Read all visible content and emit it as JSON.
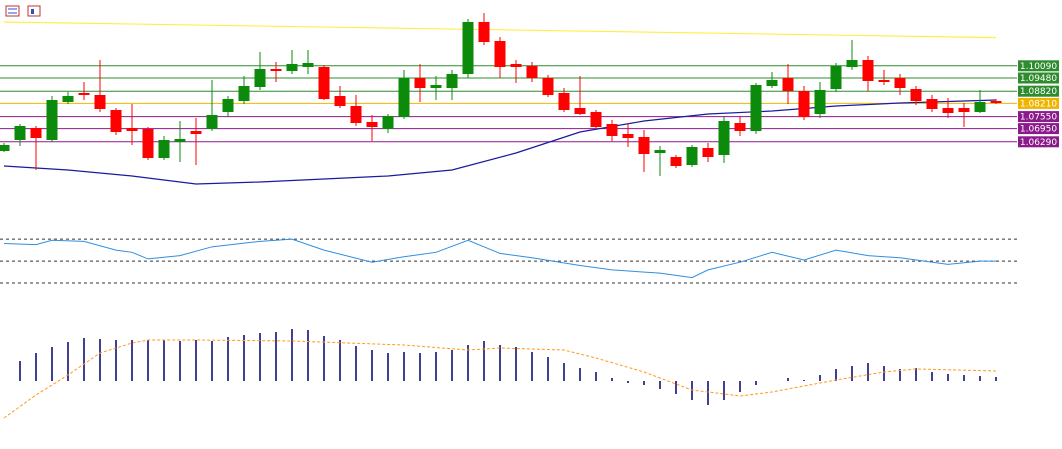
{
  "chart_data": [
    {
      "type": "candlestick",
      "ylim": [
        1.0338,
        1.1338
      ],
      "up_color": "#0b8a0b",
      "down_color": "#ff0000",
      "open": [
        1.0583,
        1.0638,
        1.0698,
        1.0638,
        1.0828,
        1.0873,
        1.0863,
        1.0788,
        1.0698,
        1.0693,
        1.0548,
        1.0628,
        1.0683,
        1.0693,
        1.0778,
        1.0833,
        1.0903,
        1.0993,
        1.0983,
        1.1003,
        1.1003,
        1.0858,
        1.0808,
        1.0728,
        1.0693,
        1.0753,
        1.0948,
        1.0898,
        1.0898,
        1.0968,
        1.1228,
        1.1133,
        1.1018,
        1.1008,
        1.0948,
        1.0873,
        1.0798,
        1.0778,
        1.0718,
        1.0668,
        1.0653,
        1.0573,
        1.0553,
        1.0513,
        1.0598,
        1.0563,
        1.0723,
        1.0683,
        1.0908,
        1.0948,
        1.0883,
        1.0768,
        1.0893,
        1.1003,
        1.1038,
        1.0938,
        1.0948,
        1.0893,
        1.0843,
        1.0798,
        1.0798,
        1.0778,
        1.0833
      ],
      "high": [
        1.0623,
        1.0718,
        1.0708,
        1.0858,
        1.0878,
        1.0928,
        1.1038,
        1.0798,
        1.0818,
        1.0703,
        1.0658,
        1.0733,
        1.0748,
        1.0938,
        1.0858,
        1.0958,
        1.1078,
        1.1028,
        1.1088,
        1.1088,
        1.1013,
        1.0908,
        1.0863,
        1.0763,
        1.0768,
        1.0988,
        1.1018,
        1.0958,
        1.0988,
        1.1243,
        1.1273,
        1.1153,
        1.1038,
        1.1028,
        1.0963,
        1.0898,
        1.0958,
        1.0788,
        1.0738,
        1.0723,
        1.0688,
        1.0608,
        1.0563,
        1.0613,
        1.0623,
        1.0753,
        1.0758,
        1.0923,
        1.0978,
        1.1018,
        1.0908,
        1.0928,
        1.1023,
        1.1138,
        1.1058,
        1.0988,
        1.0968,
        1.0908,
        1.0863,
        1.0848,
        1.0823,
        1.0888,
        1.0843
      ],
      "low": [
        1.0578,
        1.0608,
        1.0488,
        1.0628,
        1.0818,
        1.0838,
        1.0778,
        1.0663,
        1.0613,
        1.0538,
        1.0538,
        1.0528,
        1.0513,
        1.0683,
        1.0753,
        1.0818,
        1.0888,
        1.0928,
        1.0968,
        1.0968,
        1.0838,
        1.0798,
        1.0708,
        1.0633,
        1.0673,
        1.0743,
        1.0828,
        1.0838,
        1.0838,
        1.0948,
        1.1113,
        1.0948,
        1.0923,
        1.0928,
        1.0853,
        1.0778,
        1.0763,
        1.0698,
        1.0633,
        1.0603,
        1.0478,
        1.0458,
        1.0498,
        1.0503,
        1.0528,
        1.0523,
        1.0658,
        1.0668,
        1.0898,
        1.0818,
        1.0738,
        1.0748,
        1.0878,
        1.0988,
        1.0883,
        1.0913,
        1.0863,
        1.0813,
        1.0778,
        1.0748,
        1.0703,
        1.0773,
        1.0818
      ],
      "close": [
        1.0613,
        1.0708,
        1.0648,
        1.0838,
        1.0858,
        1.0863,
        1.0793,
        1.0678,
        1.0683,
        1.0548,
        1.0638,
        1.0643,
        1.0668,
        1.0763,
        1.0843,
        1.0908,
        1.0993,
        1.0983,
        1.1018,
        1.1023,
        1.0843,
        1.0808,
        1.0723,
        1.0703,
        1.0758,
        1.0948,
        1.0898,
        1.0913,
        1.0968,
        1.1228,
        1.1128,
        1.1003,
        1.1003,
        1.0948,
        1.0863,
        1.0788,
        1.0768,
        1.0703,
        1.0658,
        1.0648,
        1.0568,
        1.0588,
        1.0508,
        1.0603,
        1.0553,
        1.0733,
        1.0683,
        1.0913,
        1.0938,
        1.0883,
        1.0753,
        1.0888,
        1.1008,
        1.1038,
        1.0933,
        1.0928,
        1.0898,
        1.0833,
        1.0793,
        1.0773,
        1.0778,
        1.0828,
        1.0823
      ],
      "overlays": [
        {
          "color": "#ffee44",
          "x": [
            0,
            62
          ],
          "values": [
            1.1228,
            1.115
          ]
        },
        {
          "color": "#1a1aa0",
          "x": [
            0,
            4,
            8,
            12,
            16,
            20,
            24,
            28,
            32,
            36,
            40,
            44,
            48,
            52,
            56,
            60,
            62
          ],
          "values": [
            1.0508,
            1.0488,
            1.0458,
            1.0418,
            1.0428,
            1.0443,
            1.0458,
            1.0488,
            1.0573,
            1.0678,
            1.0733,
            1.0768,
            1.0783,
            1.0808,
            1.0823,
            1.0833,
            1.0838
          ]
        }
      ],
      "levels": [
        {
          "value": 1.1009,
          "label": "1.10090",
          "color": "#2e8b2e"
        },
        {
          "value": 1.0948,
          "label": "1.09480",
          "color": "#2e8b2e"
        },
        {
          "value": 1.0882,
          "label": "1.08820",
          "color": "#2e8b2e"
        },
        {
          "value": 1.0821,
          "label": "1.08210",
          "color": "#f0b400"
        },
        {
          "value": 1.0755,
          "label": "1.07550",
          "color": "#8b1a8b"
        },
        {
          "value": 1.0695,
          "label": "1.06950",
          "color": "#8b1a8b"
        },
        {
          "value": 1.0629,
          "label": "1.06290",
          "color": "#8b1a8b"
        }
      ]
    },
    {
      "type": "line",
      "color": "#2f8fe0",
      "ylim": [
        10,
        92
      ],
      "levels": [
        70,
        50,
        30
      ],
      "x": [
        0,
        2,
        3,
        5,
        7,
        8,
        9,
        11,
        13,
        16,
        18,
        20,
        23,
        25,
        27,
        29,
        31,
        33,
        36,
        38,
        41,
        43,
        44,
        46,
        48,
        50,
        52,
        54,
        56,
        59,
        61,
        62
      ],
      "values": [
        66,
        65,
        69,
        68,
        60,
        58,
        52,
        55,
        63,
        68,
        70,
        60,
        49,
        54,
        58,
        69,
        57,
        53,
        46,
        42,
        39,
        35,
        42,
        49,
        58,
        51,
        60,
        55,
        53,
        47,
        50,
        50
      ]
    },
    {
      "type": "bar",
      "color": "#00006e",
      "ylim": [
        -40,
        60
      ],
      "values": [
        null,
        20,
        28,
        34,
        39,
        43,
        42,
        41,
        41,
        41,
        41,
        40,
        41,
        40,
        44,
        46,
        48,
        49,
        52,
        51,
        45,
        41,
        35,
        31,
        28,
        29,
        28,
        29,
        31,
        36,
        40,
        36,
        34,
        29,
        24,
        18,
        13,
        9,
        3,
        -2,
        -4,
        -8,
        -13,
        -19,
        -24,
        -19,
        -11,
        -4,
        0,
        3,
        1,
        6,
        12,
        15,
        18,
        15,
        12,
        13,
        9,
        7,
        6,
        5,
        4
      ],
      "signal": {
        "color": "#ff9a1a",
        "x": [
          0,
          2,
          4,
          6,
          8,
          9,
          12,
          18,
          25,
          29,
          31,
          35,
          37,
          40,
          43,
          46,
          48,
          52,
          55,
          57,
          62
        ],
        "values": [
          -37,
          -14,
          6,
          28,
          38,
          41,
          41,
          40,
          36,
          31,
          33,
          31,
          23,
          9,
          -9,
          -15,
          -11,
          1,
          9,
          12,
          10
        ]
      }
    }
  ]
}
